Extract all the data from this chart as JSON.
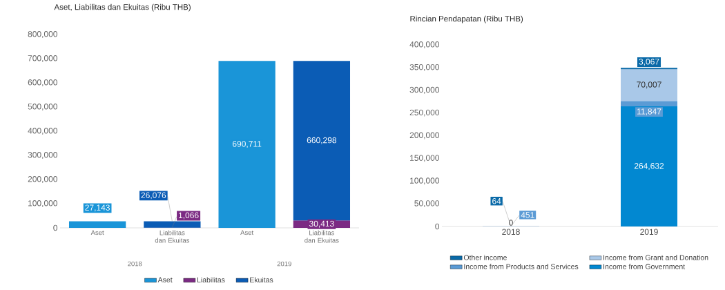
{
  "chart_data": [
    {
      "type": "bar",
      "stacked": true,
      "title": "Aset, Liabilitas dan Ekuitas (Ribu THB)",
      "categories": [
        "Aset",
        "Liabilitas dan Ekuitas",
        "Aset",
        "Liabilitas dan Ekuitas"
      ],
      "annotations": [
        "2018",
        "2019"
      ],
      "series": [
        {
          "name": "Aset",
          "color": "#1a95d8",
          "values": [
            27143,
            null,
            690711,
            null
          ],
          "value_labels": [
            "27,143",
            null,
            "690,711",
            null
          ]
        },
        {
          "name": "Liabilitas",
          "color": "#7b2a83",
          "values": [
            null,
            1066,
            null,
            30413
          ],
          "value_labels": [
            null,
            "1,066",
            null,
            "30,413"
          ]
        },
        {
          "name": "Ekuitas",
          "color": "#0b5cb5",
          "values": [
            null,
            26076,
            null,
            660298
          ],
          "value_labels": [
            null,
            "26,076",
            null,
            "660,298"
          ]
        }
      ],
      "ylim": [
        0,
        800000
      ],
      "yticks": [
        {
          "value": 0,
          "label": "0"
        },
        {
          "value": 100000,
          "label": "100,000"
        },
        {
          "value": 200000,
          "label": "200,000"
        },
        {
          "value": 300000,
          "label": "300,000"
        },
        {
          "value": 400000,
          "label": "400,000"
        },
        {
          "value": 500000,
          "label": "500,000"
        },
        {
          "value": 600000,
          "label": "600,000"
        },
        {
          "value": 700000,
          "label": "700,000"
        },
        {
          "value": 800000,
          "label": "800,000"
        }
      ],
      "legend": "bottom"
    },
    {
      "type": "bar",
      "stacked": true,
      "title": "Rincian Pendapatan (Ribu THB)",
      "categories": [
        "2018",
        "2019"
      ],
      "series": [
        {
          "name": "Income from Government",
          "color": "#0288d1",
          "values": [
            0,
            264632
          ],
          "value_labels": [
            "0",
            "264,632"
          ]
        },
        {
          "name": "Income from Products and Services",
          "color": "#5b9bd5",
          "values": [
            451,
            11847
          ],
          "value_labels": [
            "451",
            "11,847"
          ]
        },
        {
          "name": "Income from Grant and Donation",
          "color": "#a9c8e8",
          "values": [
            null,
            70007
          ],
          "value_labels": [
            null,
            "70,007"
          ]
        },
        {
          "name": "Other income",
          "color": "#0a6aa8",
          "values": [
            64,
            3067
          ],
          "value_labels": [
            "64",
            "3,067"
          ]
        }
      ],
      "ylim": [
        0,
        400000
      ],
      "yticks": [
        {
          "value": 0,
          "label": "0"
        },
        {
          "value": 50000,
          "label": "50,000"
        },
        {
          "value": 100000,
          "label": "100,000"
        },
        {
          "value": 150000,
          "label": "150,000"
        },
        {
          "value": 200000,
          "label": "200,000"
        },
        {
          "value": 250000,
          "label": "250,000"
        },
        {
          "value": 300000,
          "label": "300,000"
        },
        {
          "value": 350000,
          "label": "350,000"
        },
        {
          "value": 400000,
          "label": "400,000"
        }
      ],
      "legend": "bottom"
    }
  ]
}
